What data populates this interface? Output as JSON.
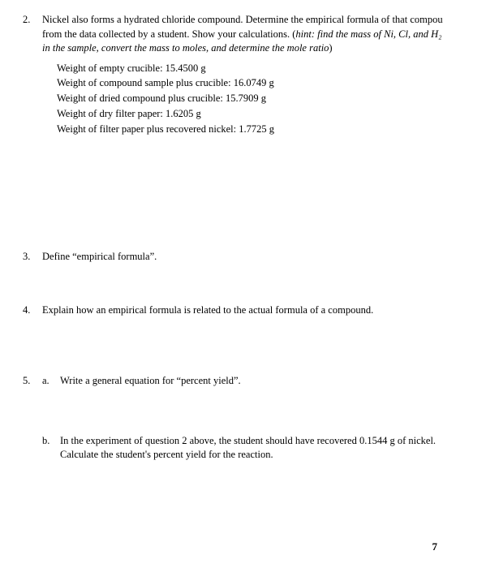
{
  "q2": {
    "num": "2.",
    "text_a": "Nickel also forms a hydrated chloride compound.  Determine the empirical formula of that compou",
    "text_b": "from the data collected by a student.  Show your calculations. (",
    "hint": "hint: find the mass of Ni, Cl, and H₂",
    "text_c": "in the sample, convert the mass to moles, and determine the mole ratio",
    "text_d": ")",
    "data": {
      "l1": "Weight of empty crucible:  15.4500 g",
      "l2": "Weight of compound sample plus crucible:  16.0749 g",
      "l3": "Weight of dried compound plus crucible: 15.7909 g",
      "l4": "Weight of dry filter paper: 1.6205 g",
      "l5": "Weight of filter paper plus recovered nickel:  1.7725 g"
    }
  },
  "q3": {
    "num": "3.",
    "text": "Define “empirical formula”."
  },
  "q4": {
    "num": "4.",
    "text": "Explain how an empirical formula is related to the actual formula of a compound."
  },
  "q5": {
    "num": "5.",
    "a_label": "a.",
    "a_text": "Write a general equation for “percent yield”.",
    "b_label": "b.",
    "b_text_1": "In the experiment of question 2 above, the student should have recovered 0.1544 g of nickel.",
    "b_text_2": "Calculate the student's percent yield for the reaction."
  },
  "page_number": "7"
}
